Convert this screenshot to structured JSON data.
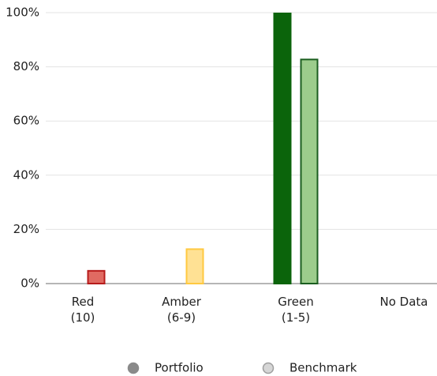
{
  "chart_data": {
    "type": "bar",
    "categories": [
      "Red\n(10)",
      "Amber\n(6-9)",
      "Green\n(1-5)",
      "No Data"
    ],
    "series": [
      {
        "name": "Portfolio",
        "color": "#8a8a8a",
        "values": [
          0,
          0,
          100,
          0
        ],
        "colors": [
          "#b71c1c",
          "#f9a825",
          "#0b640b",
          "#9e9e9e"
        ],
        "stroke_colors": [
          "#b71c1c",
          "#f9a825",
          "#0b640b",
          "#9e9e9e"
        ]
      },
      {
        "name": "Benchmark",
        "color": "#d6d6d6",
        "values": [
          5,
          13,
          83,
          0
        ],
        "colors": [
          "#e06a62",
          "#ffe194",
          "#9ccc8c",
          "#e0e0e0"
        ],
        "stroke_colors": [
          "#b71c1c",
          "#ffc940",
          "#1b5e20",
          "#9e9e9e"
        ]
      }
    ],
    "ylim": [
      0,
      100
    ],
    "yticks": [
      {
        "value": 0,
        "label": "0%"
      },
      {
        "value": 20,
        "label": "20%"
      },
      {
        "value": 40,
        "label": "40%"
      },
      {
        "value": 60,
        "label": "60%"
      },
      {
        "value": 80,
        "label": "80%"
      },
      {
        "value": 100,
        "label": "100%"
      }
    ],
    "grid": true
  }
}
